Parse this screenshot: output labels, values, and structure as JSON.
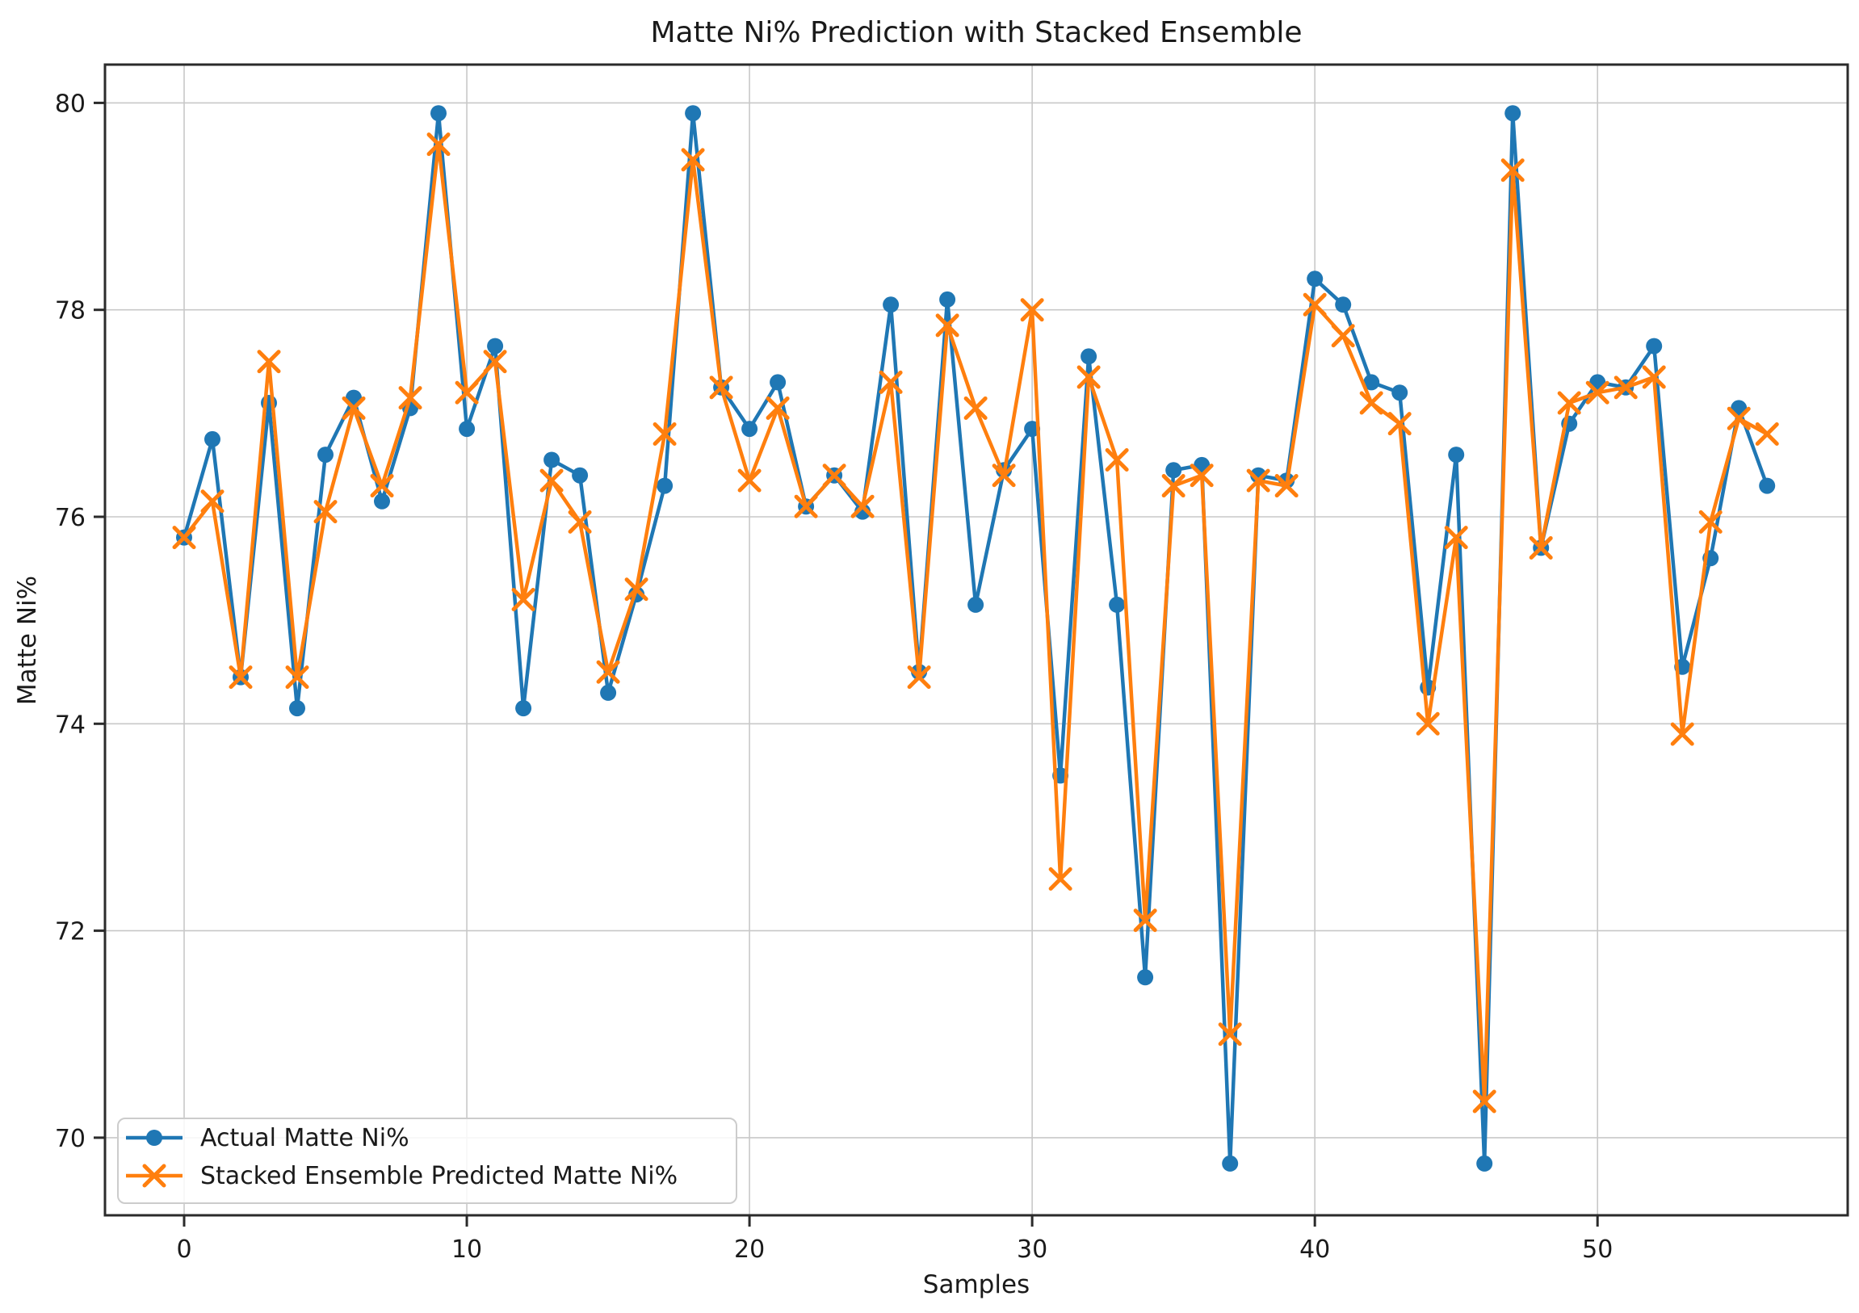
{
  "chart_data": {
    "type": "line",
    "title": "Matte Ni% Prediction with Stacked Ensemble",
    "xlabel": "Samples",
    "ylabel": "Matte Ni%",
    "x": [
      0,
      1,
      2,
      3,
      4,
      5,
      6,
      7,
      8,
      9,
      10,
      11,
      12,
      13,
      14,
      15,
      16,
      17,
      18,
      19,
      20,
      21,
      22,
      23,
      24,
      25,
      26,
      27,
      28,
      29,
      30,
      31,
      32,
      33,
      34,
      35,
      36,
      37,
      38,
      39,
      40,
      41,
      42,
      43,
      44,
      45,
      46,
      47,
      48,
      49,
      50,
      51,
      52,
      53,
      54,
      55,
      56
    ],
    "series": [
      {
        "name": "Actual Matte Ni%",
        "color": "#1f77b4",
        "marker": "circle",
        "values": [
          75.8,
          76.75,
          74.45,
          77.1,
          74.15,
          76.6,
          77.15,
          76.15,
          77.05,
          79.9,
          76.85,
          77.65,
          74.15,
          76.55,
          76.4,
          74.3,
          75.25,
          76.3,
          79.9,
          77.25,
          76.85,
          77.3,
          76.1,
          76.4,
          76.05,
          78.05,
          74.5,
          78.1,
          75.15,
          76.45,
          76.85,
          73.5,
          77.55,
          75.15,
          71.55,
          76.45,
          76.5,
          69.75,
          76.4,
          76.35,
          78.3,
          78.05,
          77.3,
          77.2,
          74.35,
          76.6,
          69.75,
          79.9,
          75.7,
          76.9,
          77.3,
          77.25,
          77.65,
          74.55,
          75.6,
          77.05,
          76.3
        ]
      },
      {
        "name": "Stacked Ensemble Predicted Matte Ni%",
        "color": "#ff7f0e",
        "marker": "x",
        "values": [
          75.8,
          76.15,
          74.45,
          77.5,
          74.45,
          76.05,
          77.05,
          76.3,
          77.15,
          79.6,
          77.2,
          77.5,
          75.2,
          76.35,
          75.95,
          74.5,
          75.3,
          76.8,
          79.45,
          77.25,
          76.35,
          77.05,
          76.1,
          76.4,
          76.1,
          77.3,
          74.45,
          77.85,
          77.05,
          76.4,
          78.0,
          72.5,
          77.35,
          76.55,
          72.1,
          76.3,
          76.4,
          71.0,
          76.35,
          76.3,
          78.05,
          77.75,
          77.1,
          76.9,
          74.0,
          75.8,
          70.35,
          79.35,
          75.7,
          77.1,
          77.2,
          77.25,
          77.35,
          73.9,
          75.95,
          76.95,
          76.8
        ]
      }
    ],
    "xticks": [
      0,
      10,
      20,
      30,
      40,
      50
    ],
    "yticks": [
      70,
      72,
      74,
      76,
      78,
      80
    ],
    "xlim": [
      -2.8,
      58.85
    ],
    "ylim": [
      69.25,
      80.37
    ],
    "grid": true,
    "legend_position": "lower left",
    "colors": {
      "grid": "#c8c8c8",
      "spine": "#2b2b2b",
      "text": "#1a1a1a",
      "legend_border": "#cccccc",
      "legend_bg": "#ffffff"
    }
  }
}
